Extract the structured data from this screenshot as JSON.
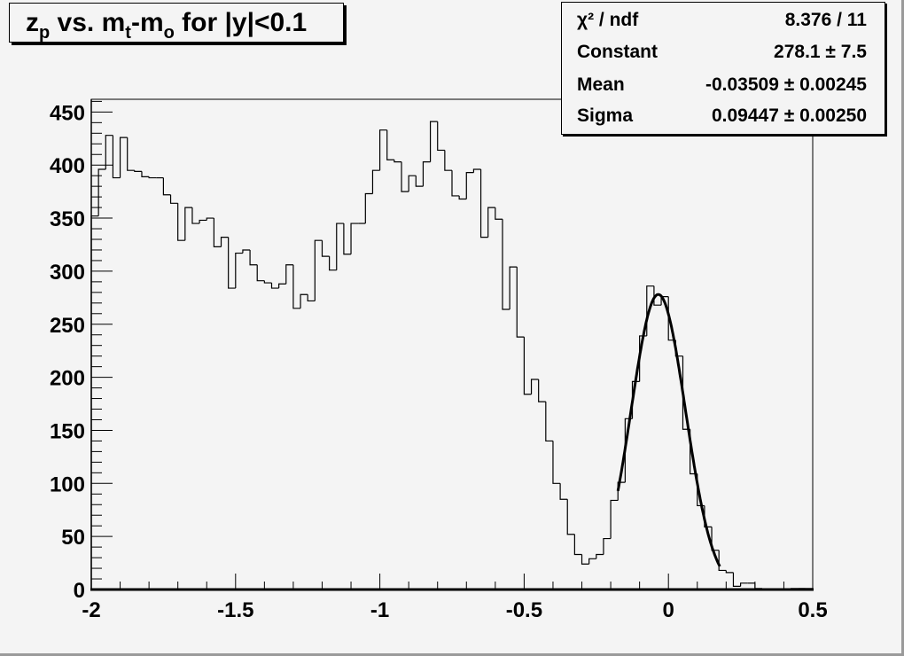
{
  "chart_data": {
    "type": "histogram",
    "title": "z_p vs. m_t-m_o for |y|<0.1",
    "title_parts": {
      "z": "z",
      "p": "p",
      "vs": " vs. m",
      "t": "t",
      "mid": "-m",
      "o": "o",
      "rest": " for |y|<0.1"
    },
    "xlabel": "",
    "ylabel": "",
    "xlim": [
      -2,
      0.5
    ],
    "ylim": [
      0,
      462
    ],
    "bin_width": 0.025,
    "x_ticks": [
      "-2",
      "-1.5",
      "-1",
      "-0.5",
      "0",
      "0.5"
    ],
    "y_ticks": [
      "0",
      "50",
      "100",
      "150",
      "200",
      "250",
      "300",
      "350",
      "400",
      "450"
    ],
    "values": [
      352,
      396,
      428,
      388,
      426,
      395,
      394,
      389,
      388,
      388,
      372,
      364,
      329,
      360,
      345,
      348,
      350,
      323,
      332,
      284,
      317,
      320,
      306,
      291,
      289,
      284,
      288,
      306,
      265,
      278,
      272,
      329,
      314,
      301,
      345,
      316,
      345,
      345,
      373,
      395,
      433,
      405,
      403,
      375,
      390,
      380,
      403,
      441,
      414,
      395,
      371,
      368,
      393,
      396,
      332,
      360,
      349,
      264,
      304,
      238,
      184,
      198,
      177,
      140,
      100,
      85,
      52,
      33,
      24,
      29,
      33,
      48,
      84,
      101,
      161,
      196,
      239,
      286,
      268,
      276,
      235,
      220,
      151,
      109,
      79,
      59,
      37,
      18,
      16,
      3,
      6,
      6,
      1,
      0,
      0,
      0,
      0,
      1,
      1,
      1
    ],
    "fit": {
      "function": "gaus",
      "constant": 278.1,
      "mean": -0.03509,
      "sigma": 0.09447,
      "range": [
        -0.175,
        0.178
      ]
    },
    "grid": false,
    "legend_placement": "top-right"
  },
  "stats": {
    "rows": [
      {
        "label": "χ² / ndf",
        "value": "8.376 / 11"
      },
      {
        "label": "Constant",
        "value": "278.1 ± 7.5"
      },
      {
        "label": "Mean",
        "value": "-0.03509 ± 0.00245"
      },
      {
        "label": "Sigma",
        "value": "0.09447 ± 0.00250"
      }
    ]
  },
  "colors": {
    "background": "#f4f4f4",
    "line": "#000000"
  }
}
